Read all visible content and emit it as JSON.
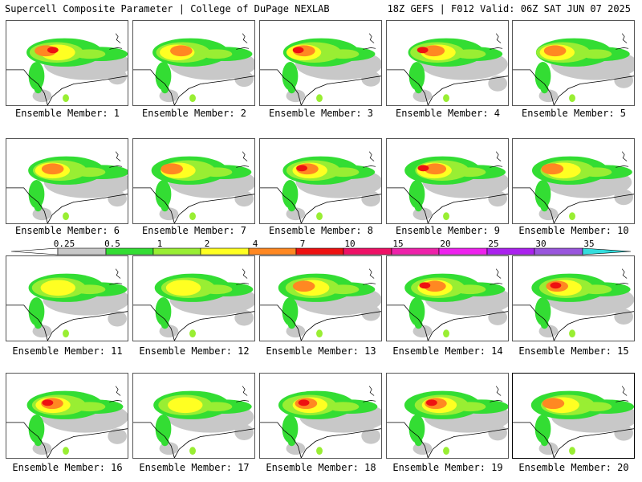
{
  "header": {
    "title": "Supercell Composite Parameter | College of DuPage NEXLAB",
    "run_info": "18Z GEFS | F012 Valid: 06Z SAT JUN 07 2025"
  },
  "colorbar": {
    "stops": [
      {
        "label": "0.25",
        "color": "#c8c8c8"
      },
      {
        "label": "0.5",
        "color": "#33dd33"
      },
      {
        "label": "1",
        "color": "#99ee33"
      },
      {
        "label": "2",
        "color": "#ffff22"
      },
      {
        "label": "4",
        "color": "#ff8822"
      },
      {
        "label": "7",
        "color": "#ee1111"
      },
      {
        "label": "10",
        "color": "#ee1166"
      },
      {
        "label": "15",
        "color": "#ee22aa"
      },
      {
        "label": "20",
        "color": "#ee22ee"
      },
      {
        "label": "25",
        "color": "#aa22ee"
      },
      {
        "label": "30",
        "color": "#9955dd"
      },
      {
        "label": "35",
        "color": "#33dddd"
      }
    ]
  },
  "members": [
    {
      "caption": "Ensemble Member: 1",
      "intensity": 4
    },
    {
      "caption": "Ensemble Member: 2",
      "intensity": 3
    },
    {
      "caption": "Ensemble Member: 3",
      "intensity": 4
    },
    {
      "caption": "Ensemble Member: 4",
      "intensity": 4
    },
    {
      "caption": "Ensemble Member: 5",
      "intensity": 3
    },
    {
      "caption": "Ensemble Member: 6",
      "intensity": 3
    },
    {
      "caption": "Ensemble Member: 7",
      "intensity": 3
    },
    {
      "caption": "Ensemble Member: 8",
      "intensity": 4
    },
    {
      "caption": "Ensemble Member: 9",
      "intensity": 4
    },
    {
      "caption": "Ensemble Member: 10",
      "intensity": 3
    },
    {
      "caption": "Ensemble Member: 11",
      "intensity": 2
    },
    {
      "caption": "Ensemble Member: 12",
      "intensity": 2
    },
    {
      "caption": "Ensemble Member: 13",
      "intensity": 3
    },
    {
      "caption": "Ensemble Member: 14",
      "intensity": 4
    },
    {
      "caption": "Ensemble Member: 15",
      "intensity": 4
    },
    {
      "caption": "Ensemble Member: 16",
      "intensity": 4
    },
    {
      "caption": "Ensemble Member: 17",
      "intensity": 2
    },
    {
      "caption": "Ensemble Member: 18",
      "intensity": 4
    },
    {
      "caption": "Ensemble Member: 19",
      "intensity": 4
    },
    {
      "caption": "Ensemble Member: 20",
      "intensity": 3,
      "selected": true
    }
  ]
}
